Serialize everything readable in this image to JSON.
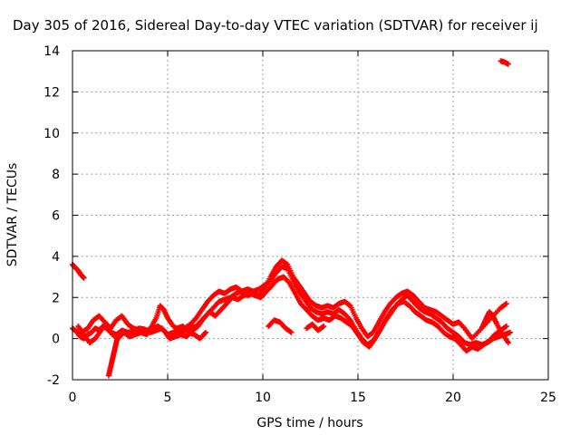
{
  "chart_data": {
    "type": "scatter",
    "title": "Day 305 of 2016, Sidereal Day-to-day VTEC variation (SDTVAR) for receiver ij",
    "xlabel": "GPS time / hours",
    "ylabel": "SDTVAR / TECUs",
    "xlim": [
      0,
      25
    ],
    "ylim": [
      -2,
      14
    ],
    "xticks": [
      0,
      5,
      10,
      15,
      20,
      25
    ],
    "yticks": [
      -2,
      0,
      2,
      4,
      6,
      8,
      10,
      12,
      14
    ],
    "grid": true,
    "marker": "plus",
    "color": "#ff0000",
    "series": [
      {
        "values": [
          [
            0.0,
            3.6
          ],
          [
            0.15,
            3.45
          ],
          [
            0.3,
            3.3
          ],
          [
            0.45,
            3.1
          ],
          [
            0.6,
            2.95
          ]
        ]
      },
      {
        "values": [
          [
            0.0,
            0.5
          ],
          [
            0.2,
            0.35
          ],
          [
            0.4,
            0.1
          ],
          [
            0.6,
            0.0
          ],
          [
            0.8,
            0.2
          ],
          [
            1.0,
            0.3
          ],
          [
            1.2,
            0.5
          ],
          [
            1.4,
            0.4
          ],
          [
            1.6,
            0.6
          ],
          [
            1.8,
            0.5
          ],
          [
            2.0,
            0.3
          ],
          [
            2.3,
            0.2
          ],
          [
            2.6,
            0.4
          ],
          [
            2.9,
            0.3
          ],
          [
            3.2,
            0.35
          ],
          [
            3.5,
            0.5
          ],
          [
            3.8,
            0.45
          ],
          [
            4.1,
            0.3
          ],
          [
            4.4,
            0.4
          ],
          [
            4.7,
            0.5
          ],
          [
            5.0,
            0.2
          ],
          [
            5.3,
            0.3
          ],
          [
            5.6,
            0.35
          ],
          [
            5.9,
            0.4
          ],
          [
            6.2,
            0.5
          ],
          [
            6.5,
            0.6
          ],
          [
            6.8,
            0.9
          ],
          [
            7.1,
            1.2
          ],
          [
            7.4,
            1.5
          ],
          [
            7.7,
            1.8
          ],
          [
            8.0,
            1.9
          ],
          [
            8.3,
            2.0
          ],
          [
            8.6,
            2.2
          ],
          [
            8.9,
            2.3
          ],
          [
            9.2,
            2.4
          ],
          [
            9.5,
            2.3
          ],
          [
            9.8,
            2.4
          ],
          [
            10.1,
            2.6
          ],
          [
            10.4,
            2.8
          ],
          [
            10.7,
            3.2
          ],
          [
            11.0,
            3.5
          ],
          [
            11.3,
            3.4
          ],
          [
            11.6,
            2.8
          ],
          [
            11.9,
            2.3
          ],
          [
            12.2,
            1.9
          ],
          [
            12.5,
            1.5
          ],
          [
            12.8,
            1.3
          ],
          [
            13.1,
            1.2
          ],
          [
            13.4,
            1.3
          ],
          [
            13.7,
            1.2
          ],
          [
            14.0,
            1.4
          ],
          [
            14.3,
            1.2
          ],
          [
            14.6,
            0.9
          ],
          [
            14.9,
            0.4
          ],
          [
            15.2,
            0.0
          ],
          [
            15.5,
            -0.3
          ],
          [
            15.8,
            -0.1
          ],
          [
            16.1,
            0.3
          ],
          [
            16.4,
            0.8
          ],
          [
            16.7,
            1.2
          ],
          [
            17.0,
            1.6
          ],
          [
            17.3,
            1.9
          ],
          [
            17.6,
            2.1
          ],
          [
            17.9,
            1.8
          ],
          [
            18.2,
            1.5
          ],
          [
            18.5,
            1.3
          ],
          [
            18.8,
            1.2
          ],
          [
            19.1,
            1.0
          ],
          [
            19.4,
            0.8
          ],
          [
            19.7,
            0.5
          ],
          [
            20.0,
            0.3
          ],
          [
            20.3,
            0.1
          ],
          [
            20.6,
            -0.2
          ],
          [
            20.9,
            -0.3
          ],
          [
            21.2,
            -0.2
          ],
          [
            21.5,
            -0.3
          ],
          [
            21.8,
            -0.2
          ],
          [
            22.1,
            0.0
          ],
          [
            22.4,
            0.1
          ],
          [
            22.7,
            0.2
          ],
          [
            23.0,
            0.3
          ]
        ]
      },
      {
        "values": [
          [
            0.3,
            0.6
          ],
          [
            0.6,
            0.2
          ],
          [
            0.9,
            -0.2
          ],
          [
            1.2,
            0.0
          ],
          [
            1.5,
            0.4
          ],
          [
            1.8,
            0.7
          ],
          [
            2.1,
            0.2
          ],
          [
            2.4,
            0.0
          ],
          [
            2.7,
            0.3
          ],
          [
            3.0,
            0.1
          ],
          [
            3.3,
            0.2
          ],
          [
            3.6,
            0.3
          ],
          [
            3.9,
            0.2
          ],
          [
            4.2,
            0.5
          ],
          [
            4.5,
            0.6
          ],
          [
            4.8,
            0.4
          ],
          [
            5.1,
            0.0
          ],
          [
            5.4,
            0.1
          ],
          [
            5.7,
            0.2
          ],
          [
            6.0,
            0.1
          ],
          [
            6.3,
            0.4
          ],
          [
            6.6,
            0.6
          ],
          [
            6.9,
            1.0
          ],
          [
            7.2,
            1.3
          ],
          [
            7.5,
            1.1
          ],
          [
            7.8,
            1.4
          ],
          [
            8.1,
            1.7
          ],
          [
            8.4,
            2.0
          ],
          [
            8.7,
            1.9
          ],
          [
            9.0,
            2.1
          ],
          [
            9.3,
            2.2
          ],
          [
            9.6,
            2.1
          ],
          [
            9.9,
            2.0
          ],
          [
            10.2,
            2.3
          ],
          [
            10.5,
            2.6
          ],
          [
            10.8,
            2.9
          ],
          [
            11.1,
            3.0
          ],
          [
            11.4,
            2.7
          ],
          [
            11.7,
            2.2
          ],
          [
            12.0,
            1.7
          ],
          [
            12.3,
            1.4
          ],
          [
            12.6,
            1.1
          ],
          [
            12.9,
            0.9
          ],
          [
            13.2,
            1.0
          ],
          [
            13.5,
            0.9
          ],
          [
            13.8,
            1.1
          ],
          [
            14.1,
            1.0
          ],
          [
            14.4,
            0.8
          ],
          [
            14.7,
            0.6
          ],
          [
            15.0,
            0.2
          ],
          [
            15.3,
            -0.2
          ],
          [
            15.6,
            -0.4
          ],
          [
            15.9,
            0.0
          ],
          [
            16.2,
            0.5
          ],
          [
            16.5,
            1.0
          ],
          [
            16.8,
            1.4
          ],
          [
            17.1,
            1.7
          ],
          [
            17.4,
            1.8
          ],
          [
            17.7,
            1.6
          ],
          [
            18.0,
            1.3
          ],
          [
            18.3,
            1.1
          ],
          [
            18.6,
            0.9
          ],
          [
            18.9,
            0.8
          ],
          [
            19.2,
            0.6
          ],
          [
            19.5,
            0.3
          ],
          [
            19.8,
            0.1
          ],
          [
            20.1,
            0.0
          ],
          [
            20.4,
            -0.3
          ],
          [
            20.7,
            -0.6
          ],
          [
            21.0,
            -0.4
          ],
          [
            21.3,
            -0.5
          ],
          [
            21.6,
            -0.3
          ],
          [
            21.9,
            -0.1
          ],
          [
            22.2,
            0.2
          ],
          [
            22.5,
            0.4
          ],
          [
            22.8,
            0.6
          ]
        ]
      },
      {
        "values": [
          [
            0.5,
            0.3
          ],
          [
            0.8,
            0.5
          ],
          [
            1.1,
            0.9
          ],
          [
            1.4,
            1.1
          ],
          [
            1.7,
            0.8
          ],
          [
            2.0,
            0.5
          ],
          [
            2.3,
            0.9
          ],
          [
            2.6,
            1.1
          ],
          [
            2.9,
            0.7
          ],
          [
            3.2,
            0.5
          ],
          [
            3.5,
            0.4
          ],
          [
            3.8,
            0.3
          ],
          [
            4.1,
            0.5
          ],
          [
            4.4,
            1.0
          ],
          [
            4.6,
            1.6
          ],
          [
            4.8,
            1.4
          ],
          [
            5.0,
            1.0
          ],
          [
            5.3,
            0.6
          ],
          [
            5.6,
            0.4
          ],
          [
            5.9,
            0.5
          ],
          [
            6.2,
            0.7
          ],
          [
            6.5,
            1.0
          ],
          [
            6.8,
            1.4
          ],
          [
            7.1,
            1.8
          ],
          [
            7.4,
            2.1
          ],
          [
            7.7,
            2.3
          ],
          [
            8.0,
            2.2
          ],
          [
            8.3,
            2.4
          ],
          [
            8.6,
            2.5
          ],
          [
            8.9,
            2.3
          ],
          [
            9.2,
            2.1
          ],
          [
            9.5,
            2.2
          ],
          [
            9.8,
            2.1
          ],
          [
            10.1,
            2.4
          ],
          [
            10.4,
            3.0
          ],
          [
            10.7,
            3.5
          ],
          [
            11.0,
            3.8
          ],
          [
            11.3,
            3.6
          ],
          [
            11.6,
            3.0
          ],
          [
            11.9,
            2.6
          ],
          [
            12.2,
            2.2
          ],
          [
            12.5,
            1.8
          ],
          [
            12.8,
            1.6
          ],
          [
            13.1,
            1.5
          ],
          [
            13.4,
            1.6
          ],
          [
            13.7,
            1.5
          ],
          [
            14.0,
            1.7
          ],
          [
            14.3,
            1.8
          ],
          [
            14.6,
            1.6
          ],
          [
            14.9,
            1.0
          ],
          [
            15.2,
            0.5
          ],
          [
            15.5,
            0.1
          ],
          [
            15.8,
            0.3
          ],
          [
            16.1,
            0.8
          ],
          [
            16.4,
            1.3
          ],
          [
            16.7,
            1.7
          ],
          [
            17.0,
            2.0
          ],
          [
            17.3,
            2.2
          ],
          [
            17.6,
            2.3
          ],
          [
            17.9,
            2.1
          ],
          [
            18.2,
            1.8
          ],
          [
            18.5,
            1.5
          ],
          [
            18.8,
            1.4
          ],
          [
            19.1,
            1.3
          ],
          [
            19.4,
            1.1
          ],
          [
            19.7,
            0.9
          ],
          [
            20.0,
            0.7
          ],
          [
            20.3,
            0.8
          ],
          [
            20.6,
            0.5
          ],
          [
            21.0,
            0.0
          ],
          [
            21.5,
            0.5
          ],
          [
            22.0,
            1.0
          ],
          [
            22.5,
            1.5
          ],
          [
            22.8,
            1.7
          ]
        ]
      },
      {
        "values": [
          [
            1.9,
            -1.8
          ],
          [
            2.0,
            -1.4
          ],
          [
            2.1,
            -1.0
          ],
          [
            2.2,
            -0.6
          ],
          [
            2.3,
            -0.2
          ],
          [
            2.4,
            0.2
          ]
        ]
      },
      {
        "values": [
          [
            5.5,
            0.5
          ],
          [
            5.8,
            0.6
          ],
          [
            6.1,
            0.3
          ],
          [
            6.4,
            0.2
          ],
          [
            6.7,
            0.0
          ],
          [
            7.0,
            0.3
          ]
        ]
      },
      {
        "values": [
          [
            10.3,
            0.6
          ],
          [
            10.6,
            0.9
          ],
          [
            10.9,
            0.8
          ],
          [
            11.2,
            0.5
          ],
          [
            11.5,
            0.3
          ]
        ]
      },
      {
        "values": [
          [
            12.3,
            0.5
          ],
          [
            12.6,
            0.7
          ],
          [
            12.9,
            0.4
          ],
          [
            13.2,
            0.6
          ]
        ]
      },
      {
        "values": [
          [
            21.5,
            0.5
          ],
          [
            21.7,
            0.9
          ],
          [
            21.9,
            1.3
          ],
          [
            22.1,
            1.1
          ],
          [
            22.3,
            0.7
          ],
          [
            22.6,
            0.2
          ],
          [
            22.9,
            -0.2
          ]
        ]
      },
      {
        "values": [
          [
            22.5,
            13.5
          ],
          [
            22.7,
            13.45
          ],
          [
            22.9,
            13.35
          ]
        ]
      }
    ]
  }
}
